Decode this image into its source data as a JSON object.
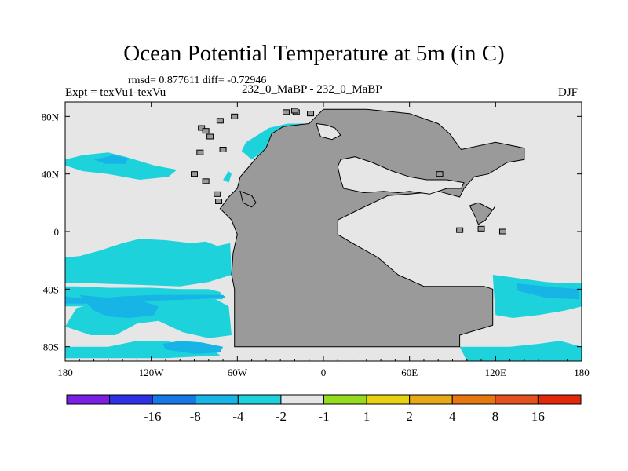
{
  "title": "Ocean Potential Temperature at 5m (in C)",
  "stats_text": "rmsd= 0.877611 diff= -0.72946",
  "left_label": "Expt = texVu1-texVu",
  "center_label": "232_0_MaBP - 232_0_MaBP",
  "right_label": "DJF",
  "colors": {
    "land": "#9a9a9a",
    "ocean_neutral": "#e6e6e6",
    "anomaly_minus1_to_minus2": "#1ed2dc",
    "anomaly_minus2_to_minus4": "#17b4e6"
  },
  "chart_data": {
    "type": "heatmap",
    "projection": "cylindrical-equidistant",
    "title": "Ocean Potential Temperature at 5m (in C)",
    "xlim": [
      -180,
      180
    ],
    "ylim": [
      -90,
      90
    ],
    "lon_ticks": [
      {
        "value": -180,
        "label": "180"
      },
      {
        "value": -120,
        "label": "120W"
      },
      {
        "value": -60,
        "label": "60W"
      },
      {
        "value": 0,
        "label": "0"
      },
      {
        "value": 60,
        "label": "60E"
      },
      {
        "value": 120,
        "label": "120E"
      },
      {
        "value": 180,
        "label": "180"
      }
    ],
    "lat_ticks": [
      {
        "value": 80,
        "label": "80N"
      },
      {
        "value": 40,
        "label": "40N"
      },
      {
        "value": 0,
        "label": "0"
      },
      {
        "value": -40,
        "label": "40S"
      },
      {
        "value": -80,
        "label": "80S"
      }
    ],
    "landmass": [
      [
        -62,
        -80
      ],
      [
        -62,
        -40
      ],
      [
        -64,
        -30
      ],
      [
        -63,
        -15
      ],
      [
        -60,
        -2
      ],
      [
        -64,
        8
      ],
      [
        -72,
        16
      ],
      [
        -66,
        24
      ],
      [
        -60,
        30
      ],
      [
        -58,
        38
      ],
      [
        -52,
        45
      ],
      [
        -46,
        52
      ],
      [
        -40,
        58
      ],
      [
        -36,
        68
      ],
      [
        -28,
        73
      ],
      [
        -10,
        75
      ],
      [
        -5,
        80
      ],
      [
        0,
        85
      ],
      [
        30,
        85
      ],
      [
        60,
        82
      ],
      [
        80,
        75
      ],
      [
        88,
        68
      ],
      [
        96,
        57
      ],
      [
        120,
        62
      ],
      [
        140,
        58
      ],
      [
        140,
        50
      ],
      [
        128,
        48
      ],
      [
        115,
        40
      ],
      [
        105,
        38
      ],
      [
        98,
        30
      ],
      [
        95,
        24
      ],
      [
        80,
        28
      ],
      [
        60,
        26
      ],
      [
        45,
        25
      ],
      [
        24,
        15
      ],
      [
        10,
        8
      ],
      [
        10,
        -2
      ],
      [
        20,
        -8
      ],
      [
        38,
        -18
      ],
      [
        52,
        -30
      ],
      [
        70,
        -38
      ],
      [
        86,
        -38
      ],
      [
        112,
        -38
      ],
      [
        118,
        -40
      ],
      [
        118,
        -65
      ],
      [
        95,
        -72
      ],
      [
        95,
        -80
      ],
      [
        -62,
        -80
      ]
    ],
    "land_islands": [
      [
        [
          102,
          18
        ],
        [
          108,
          20
        ],
        [
          118,
          15
        ],
        [
          120,
          18
        ],
        [
          113,
          8
        ],
        [
          108,
          5
        ],
        [
          106,
          10
        ],
        [
          102,
          18
        ]
      ],
      [
        [
          -58,
          28
        ],
        [
          -50,
          25
        ],
        [
          -47,
          20
        ],
        [
          -50,
          17
        ],
        [
          -56,
          20
        ],
        [
          -58,
          28
        ]
      ]
    ],
    "ocean_holes": [
      [
        [
          10,
          45
        ],
        [
          12,
          50
        ],
        [
          22,
          52
        ],
        [
          34,
          48
        ],
        [
          48,
          42
        ],
        [
          60,
          38
        ],
        [
          72,
          36
        ],
        [
          86,
          36
        ],
        [
          98,
          34
        ],
        [
          96,
          30
        ],
        [
          86,
          30
        ],
        [
          74,
          26
        ],
        [
          60,
          28
        ],
        [
          52,
          27
        ],
        [
          42,
          28
        ],
        [
          28,
          27
        ],
        [
          14,
          30
        ],
        [
          12,
          36
        ],
        [
          10,
          45
        ]
      ],
      [
        [
          -5,
          75
        ],
        [
          2,
          74
        ],
        [
          8,
          72
        ],
        [
          12,
          67
        ],
        [
          6,
          64
        ],
        [
          -2,
          66
        ],
        [
          -5,
          75
        ]
      ]
    ],
    "small_islands": [
      [
        -62,
        80
      ],
      [
        -72,
        77
      ],
      [
        -85,
        72
      ],
      [
        -82,
        70
      ],
      [
        -79,
        66
      ],
      [
        -86,
        55
      ],
      [
        -90,
        40
      ],
      [
        -82,
        35
      ],
      [
        -70,
        57
      ],
      [
        -74,
        26
      ],
      [
        -73,
        21
      ],
      [
        -19,
        83
      ],
      [
        -20,
        84
      ],
      [
        -26,
        83
      ],
      [
        -9,
        82
      ],
      [
        95,
        1
      ],
      [
        110,
        2
      ],
      [
        125,
        0
      ],
      [
        81,
        40
      ]
    ],
    "anomaly_regions": [
      {
        "level": "-1 to -2",
        "polygon": [
          [
            -180,
            -66
          ],
          [
            -172,
            -53
          ],
          [
            -150,
            -48
          ],
          [
            -120,
            -47
          ],
          [
            -97,
            -45
          ],
          [
            -75,
            -47
          ],
          [
            -66,
            -52
          ],
          [
            -64,
            -72
          ],
          [
            -80,
            -74
          ],
          [
            -98,
            -70
          ],
          [
            -115,
            -62
          ],
          [
            -130,
            -64
          ],
          [
            -145,
            -72
          ],
          [
            -162,
            -72
          ],
          [
            -180,
            -66
          ]
        ]
      },
      {
        "level": "-1 to -2",
        "polygon": [
          [
            -180,
            -38
          ],
          [
            -172,
            -38
          ],
          [
            -150,
            -39
          ],
          [
            -120,
            -39
          ],
          [
            -100,
            -40
          ],
          [
            -80,
            -40
          ],
          [
            -72,
            -42
          ],
          [
            -70,
            -47
          ],
          [
            -95,
            -47
          ],
          [
            -120,
            -50
          ],
          [
            -150,
            -52
          ],
          [
            -172,
            -52
          ],
          [
            -180,
            -52
          ],
          [
            -180,
            -38
          ]
        ]
      },
      {
        "level": "-1 to -2",
        "polygon": [
          [
            -180,
            -18
          ],
          [
            -170,
            -17
          ],
          [
            -155,
            -13
          ],
          [
            -140,
            -8
          ],
          [
            -128,
            -5
          ],
          [
            -110,
            -6
          ],
          [
            -92,
            -8
          ],
          [
            -82,
            -7
          ],
          [
            -74,
            -10
          ],
          [
            -65,
            -8
          ],
          [
            -64,
            -30
          ],
          [
            -80,
            -35
          ],
          [
            -100,
            -38
          ],
          [
            -130,
            -37
          ],
          [
            -160,
            -36
          ],
          [
            -180,
            -36
          ],
          [
            -180,
            -18
          ]
        ]
      },
      {
        "level": "-1 to -2",
        "polygon": [
          [
            -180,
            -80
          ],
          [
            -172,
            -80
          ],
          [
            -150,
            -80
          ],
          [
            -130,
            -76
          ],
          [
            -110,
            -76
          ],
          [
            -96,
            -79
          ],
          [
            -80,
            -80
          ],
          [
            -72,
            -86
          ],
          [
            -110,
            -88
          ],
          [
            -150,
            -88
          ],
          [
            -180,
            -88
          ],
          [
            -180,
            -80
          ]
        ]
      },
      {
        "level": "-1 to -2",
        "polygon": [
          [
            -180,
            50
          ],
          [
            -168,
            53
          ],
          [
            -150,
            55
          ],
          [
            -138,
            52
          ],
          [
            -118,
            46
          ],
          [
            -102,
            43
          ],
          [
            -108,
            38
          ],
          [
            -128,
            36
          ],
          [
            -150,
            40
          ],
          [
            -168,
            42
          ],
          [
            -180,
            46
          ],
          [
            -180,
            50
          ]
        ]
      },
      {
        "level": "-1 to -2",
        "polygon": [
          [
            -50,
            50
          ],
          [
            -42,
            56
          ],
          [
            -30,
            60
          ],
          [
            -20,
            60
          ],
          [
            -10,
            62
          ],
          [
            -4,
            66
          ],
          [
            -2,
            72
          ],
          [
            -10,
            75
          ],
          [
            -25,
            75
          ],
          [
            -38,
            72
          ],
          [
            -46,
            67
          ],
          [
            -54,
            62
          ],
          [
            -57,
            56
          ],
          [
            -50,
            50
          ]
        ]
      },
      {
        "level": "-1 to -2",
        "polygon": [
          [
            -70,
            36
          ],
          [
            -66,
            42
          ],
          [
            -64,
            40
          ],
          [
            -66,
            34
          ],
          [
            -70,
            36
          ]
        ]
      },
      {
        "level": "-1 to -2",
        "polygon": [
          [
            118,
            -30
          ],
          [
            140,
            -33
          ],
          [
            155,
            -35
          ],
          [
            170,
            -36
          ],
          [
            180,
            -36
          ],
          [
            180,
            -52
          ],
          [
            168,
            -55
          ],
          [
            150,
            -58
          ],
          [
            132,
            -60
          ],
          [
            120,
            -58
          ],
          [
            118,
            -30
          ]
        ]
      },
      {
        "level": "-1 to -2",
        "polygon": [
          [
            95,
            -80
          ],
          [
            110,
            -80
          ],
          [
            130,
            -80
          ],
          [
            150,
            -78
          ],
          [
            165,
            -76
          ],
          [
            180,
            -80
          ],
          [
            180,
            -90
          ],
          [
            100,
            -90
          ],
          [
            95,
            -80
          ]
        ]
      },
      {
        "level": "-2 to -4",
        "polygon": [
          [
            -180,
            -45
          ],
          [
            -165,
            -47
          ],
          [
            -140,
            -45
          ],
          [
            -120,
            -44
          ],
          [
            -90,
            -44
          ],
          [
            -70,
            -44
          ],
          [
            -68,
            -46
          ],
          [
            -90,
            -47
          ],
          [
            -120,
            -48
          ],
          [
            -150,
            -50
          ],
          [
            -170,
            -50
          ],
          [
            -180,
            -50
          ],
          [
            -180,
            -45
          ]
        ]
      },
      {
        "level": "-2 to -4",
        "polygon": [
          [
            -170,
            -44
          ],
          [
            -150,
            -46
          ],
          [
            -130,
            -47
          ],
          [
            -115,
            -52
          ],
          [
            -118,
            -58
          ],
          [
            -135,
            -60
          ],
          [
            -150,
            -59
          ],
          [
            -160,
            -55
          ],
          [
            -170,
            -44
          ]
        ]
      },
      {
        "level": "-2 to -4",
        "polygon": [
          [
            -112,
            -78
          ],
          [
            -100,
            -76
          ],
          [
            -85,
            -77
          ],
          [
            -70,
            -80
          ],
          [
            -72,
            -84
          ],
          [
            -90,
            -85
          ],
          [
            -110,
            -82
          ],
          [
            -112,
            -78
          ]
        ]
      },
      {
        "level": "-2 to -4",
        "polygon": [
          [
            -160,
            50
          ],
          [
            -146,
            53
          ],
          [
            -136,
            51
          ],
          [
            -138,
            47
          ],
          [
            -152,
            47
          ],
          [
            -160,
            50
          ]
        ]
      },
      {
        "level": "-2 to -4",
        "polygon": [
          [
            135,
            -36
          ],
          [
            155,
            -38
          ],
          [
            178,
            -40
          ],
          [
            178,
            -47
          ],
          [
            155,
            -46
          ],
          [
            135,
            -41
          ],
          [
            135,
            -36
          ]
        ]
      }
    ],
    "colorbar": {
      "colors": [
        "#7d1ee6",
        "#2d32e6",
        "#1478e6",
        "#17b4e6",
        "#1ed2dc",
        "#e6e6e6",
        "#96dc1e",
        "#e6d20f",
        "#e6aa14",
        "#e6780f",
        "#e6501e",
        "#e6280a"
      ],
      "labels": [
        "-16",
        "-8",
        "-4",
        "-2",
        "-1",
        "1",
        "2",
        "4",
        "8",
        "16"
      ]
    }
  }
}
